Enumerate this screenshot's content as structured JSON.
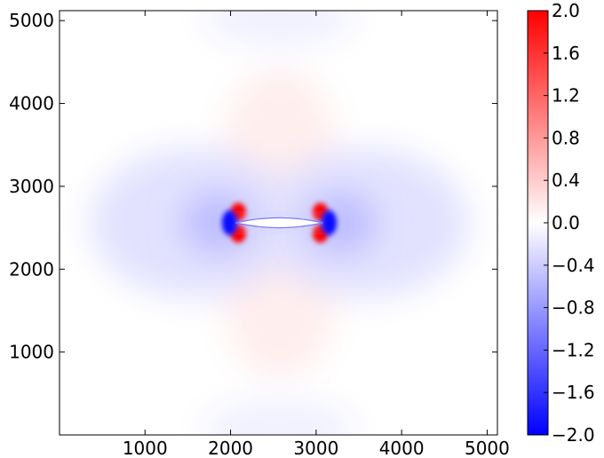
{
  "chart_data": {
    "type": "heatmap",
    "title": "",
    "xlabel": "",
    "ylabel": "",
    "xlim": [
      0,
      5120
    ],
    "ylim": [
      0,
      5120
    ],
    "x_ticks": [
      1000,
      2000,
      3000,
      4000,
      5000
    ],
    "y_ticks": [
      1000,
      2000,
      3000,
      4000,
      5000
    ],
    "x_tick_labels": [
      "1000",
      "2000",
      "3000",
      "4000",
      "5000"
    ],
    "y_tick_labels": [
      "1000",
      "2000",
      "3000",
      "4000",
      "5000"
    ],
    "colorbar": {
      "range": [
        -2.0,
        2.0
      ],
      "ticks": [
        2.0,
        1.6,
        1.2,
        0.8,
        0.4,
        0.0,
        -0.4,
        -0.8,
        -1.2,
        -1.6,
        -2.0
      ],
      "tick_labels": [
        "2.0",
        "1.6",
        "1.2",
        "0.8",
        "0.4",
        "0.0",
        "−0.4",
        "−0.8",
        "−1.2",
        "−1.6",
        "−2.0"
      ],
      "colormap": "bwr",
      "colors": {
        "low": "#0000ff",
        "mid": "#ffffff",
        "high": "#ff0000"
      }
    },
    "field": {
      "description_of_features": "crack along y=2560 from x=2060 to x=3080; red lobes above/below crack, blue lobes left/right; red concentrations at crack tips, blue just outside tips",
      "crack": {
        "x_start": 2060,
        "x_end": 3080,
        "y": 2560,
        "half_opening": 120
      },
      "blobs": [
        {
          "cx": 2570,
          "cy": 3400,
          "rx": 680,
          "ry": 1050,
          "value": 0.15
        },
        {
          "cx": 2570,
          "cy": 1720,
          "rx": 680,
          "ry": 1050,
          "value": 0.15
        },
        {
          "cx": 1560,
          "cy": 2560,
          "rx": 1200,
          "ry": 900,
          "value": -0.25
        },
        {
          "cx": 3580,
          "cy": 2560,
          "rx": 1200,
          "ry": 900,
          "value": -0.25
        },
        {
          "cx": 1850,
          "cy": 2560,
          "rx": 420,
          "ry": 380,
          "value": -0.55
        },
        {
          "cx": 3290,
          "cy": 2560,
          "rx": 420,
          "ry": 380,
          "value": -0.55
        },
        {
          "cx": 2570,
          "cy": 5050,
          "rx": 900,
          "ry": 380,
          "value": -0.12
        },
        {
          "cx": 2570,
          "cy": 60,
          "rx": 900,
          "ry": 380,
          "value": -0.12
        },
        {
          "cx": 2090,
          "cy": 2690,
          "rx": 90,
          "ry": 110,
          "value": 2.0
        },
        {
          "cx": 2090,
          "cy": 2430,
          "rx": 90,
          "ry": 110,
          "value": 2.0
        },
        {
          "cx": 3050,
          "cy": 2690,
          "rx": 90,
          "ry": 110,
          "value": 2.0
        },
        {
          "cx": 3050,
          "cy": 2430,
          "rx": 90,
          "ry": 110,
          "value": 2.0
        },
        {
          "cx": 1990,
          "cy": 2560,
          "rx": 90,
          "ry": 150,
          "value": -2.0
        },
        {
          "cx": 3150,
          "cy": 2560,
          "rx": 90,
          "ry": 150,
          "value": -2.0
        },
        {
          "cx": 2570,
          "cy": 2560,
          "rx": 520,
          "ry": 70,
          "value": -0.35
        }
      ]
    }
  }
}
